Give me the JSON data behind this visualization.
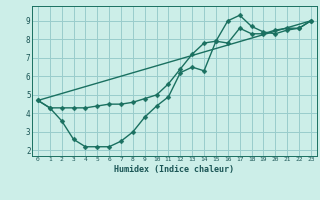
{
  "line1": {
    "x": [
      0,
      1,
      2,
      3,
      4,
      5,
      6,
      7,
      8,
      9,
      10,
      11,
      12,
      13,
      14,
      15,
      16,
      17,
      18,
      19,
      20,
      21,
      22,
      23
    ],
    "y": [
      4.7,
      4.3,
      3.6,
      2.6,
      2.2,
      2.2,
      2.2,
      2.5,
      3.0,
      3.8,
      4.4,
      4.9,
      6.2,
      6.5,
      6.3,
      7.9,
      7.8,
      8.6,
      8.3,
      8.3,
      8.5,
      8.6,
      8.6,
      9.0
    ],
    "color": "#1a7060",
    "marker": "D",
    "markersize": 2.5,
    "linewidth": 1.0
  },
  "line2": {
    "x": [
      0,
      1,
      2,
      3,
      4,
      5,
      6,
      7,
      8,
      9,
      10,
      11,
      12,
      13,
      14,
      15,
      16,
      17,
      18,
      19,
      20,
      21,
      22,
      23
    ],
    "y": [
      4.7,
      4.3,
      4.3,
      4.3,
      4.3,
      4.4,
      4.5,
      4.5,
      4.6,
      4.8,
      5.0,
      5.6,
      6.4,
      7.2,
      7.8,
      7.9,
      9.0,
      9.3,
      8.7,
      8.4,
      8.3,
      8.5,
      8.6,
      9.0
    ],
    "color": "#1a7060",
    "marker": "D",
    "markersize": 2.5,
    "linewidth": 1.0
  },
  "line3": {
    "x": [
      0,
      23
    ],
    "y": [
      4.7,
      9.0
    ],
    "color": "#1a7060",
    "marker": null,
    "markersize": 0,
    "linewidth": 1.0
  },
  "bg_color": "#cceee8",
  "grid_color": "#99cccc",
  "axis_color": "#1a7060",
  "text_color": "#1a5555",
  "xlabel": "Humidex (Indice chaleur)",
  "xlim": [
    -0.5,
    23.5
  ],
  "ylim": [
    1.7,
    9.8
  ],
  "xticks": [
    0,
    1,
    2,
    3,
    4,
    5,
    6,
    7,
    8,
    9,
    10,
    11,
    12,
    13,
    14,
    15,
    16,
    17,
    18,
    19,
    20,
    21,
    22,
    23
  ],
  "yticks": [
    2,
    3,
    4,
    5,
    6,
    7,
    8,
    9
  ]
}
